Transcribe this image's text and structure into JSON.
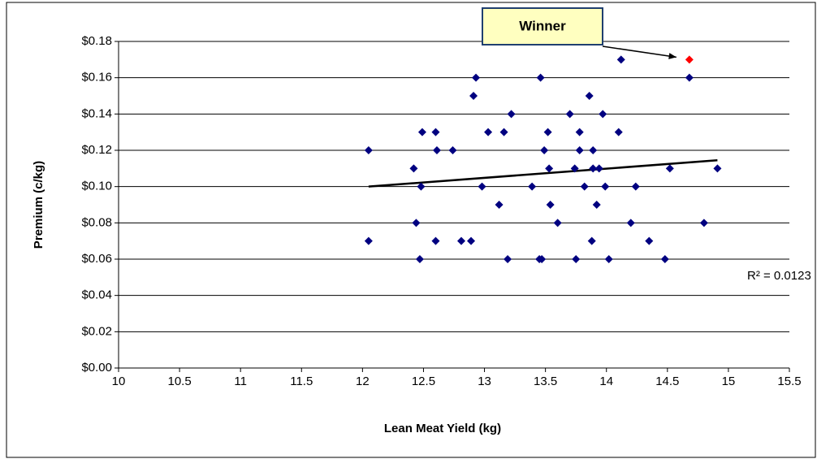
{
  "chart_data": {
    "type": "scatter",
    "xlabel": "Lean Meat Yield (kg)",
    "ylabel": "Premium (c/kg)",
    "xlim": [
      10,
      15.5
    ],
    "xticks": [
      10,
      10.5,
      11,
      11.5,
      12,
      12.5,
      13,
      13.5,
      14,
      14.5,
      15,
      15.5
    ],
    "ylim": [
      0,
      0.18
    ],
    "yticks": [
      {
        "value": 0,
        "label": "$0.00"
      },
      {
        "value": 0.02,
        "label": "$0.02"
      },
      {
        "value": 0.04,
        "label": "$0.04"
      },
      {
        "value": 0.06,
        "label": "$0.06"
      },
      {
        "value": 0.08,
        "label": "$0.08"
      },
      {
        "value": 0.1,
        "label": "$0.10"
      },
      {
        "value": 0.12,
        "label": "$0.12"
      },
      {
        "value": 0.14,
        "label": "$0.14"
      },
      {
        "value": 0.16,
        "label": "$0.16"
      },
      {
        "value": 0.18,
        "label": "$0.18"
      }
    ],
    "grid": true,
    "series": [
      {
        "color": "#000080",
        "x": [
          12.05,
          12.05,
          12.42,
          12.44,
          12.47,
          12.48,
          12.49,
          12.6,
          12.61,
          12.6,
          12.74,
          12.81,
          12.89,
          12.91,
          12.93,
          12.98,
          13.03,
          13.12,
          13.16,
          13.19,
          13.22,
          13.39,
          13.45,
          13.47,
          13.46,
          13.49,
          13.52,
          13.53,
          13.54,
          13.6,
          13.7,
          13.74,
          13.75,
          13.78,
          13.78,
          13.82,
          13.86,
          13.88,
          13.89,
          13.89,
          13.92,
          13.94,
          13.97,
          13.99,
          14.02,
          14.1,
          14.12,
          14.2,
          14.24,
          14.35,
          14.48,
          14.52,
          14.68,
          14.8,
          14.91
        ],
        "values": [
          0.12,
          0.07,
          0.11,
          0.08,
          0.06,
          0.1,
          0.13,
          0.13,
          0.12,
          0.07,
          0.12,
          0.07,
          0.07,
          0.15,
          0.16,
          0.1,
          0.13,
          0.09,
          0.13,
          0.06,
          0.14,
          0.1,
          0.06,
          0.06,
          0.16,
          0.12,
          0.13,
          0.11,
          0.09,
          0.08,
          0.14,
          0.11,
          0.06,
          0.13,
          0.12,
          0.1,
          0.15,
          0.07,
          0.12,
          0.11,
          0.09,
          0.11,
          0.14,
          0.1,
          0.06,
          0.13,
          0.17,
          0.08,
          0.1,
          0.07,
          0.06,
          0.11,
          0.16,
          0.08,
          0.11
        ]
      },
      {
        "color": "#ff0000",
        "x": [
          14.68
        ],
        "values": [
          0.17
        ]
      }
    ],
    "trendline": {
      "color": "#000000",
      "x": [
        12.05,
        14.91
      ],
      "values": [
        0.1,
        0.1145
      ],
      "label": "R² = 0.0123"
    },
    "annotations": [
      {
        "text": "Winner"
      }
    ]
  }
}
